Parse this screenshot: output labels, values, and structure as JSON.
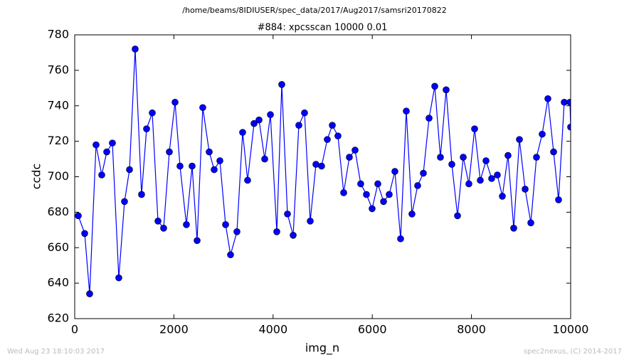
{
  "chart_data": {
    "type": "line",
    "header": "/home/beams/8IDIUSER/spec_data/2017/Aug2017/samsri20170822",
    "title": "#884: xpcsscan 10000 0.01",
    "x_label": "img_n",
    "y_label": "ccdc",
    "footer_left": "Wed Aug 23 18:10:03 2017",
    "footer_right": "spec2nexus, (C) 2014-2017",
    "xlim": [
      0,
      10000
    ],
    "xticks": [
      0,
      2000,
      4000,
      6000,
      8000,
      10000
    ],
    "ylim": [
      620,
      780
    ],
    "yticks": [
      620,
      640,
      660,
      680,
      700,
      720,
      740,
      760,
      780
    ],
    "x": [
      72,
      201,
      301,
      430,
      545,
      646,
      760,
      889,
      1004,
      1105,
      1219,
      1348,
      1449,
      1564,
      1679,
      1793,
      1908,
      2023,
      2123,
      2252,
      2367,
      2468,
      2582,
      2712,
      2812,
      2927,
      3042,
      3142,
      3271,
      3386,
      3486,
      3616,
      3716,
      3831,
      3946,
      4075,
      4175,
      4290,
      4405,
      4519,
      4634,
      4749,
      4864,
      4978,
      5093,
      5194,
      5308,
      5423,
      5538,
      5653,
      5767,
      5882,
      5997,
      6112,
      6227,
      6341,
      6456,
      6571,
      6686,
      6800,
      6915,
      7030,
      7145,
      7260,
      7374,
      7489,
      7604,
      7719,
      7834,
      7948,
      8063,
      8178,
      8293,
      8407,
      8522,
      8623,
      8737,
      8852,
      8967,
      9082,
      9197,
      9311,
      9426,
      9541,
      9656,
      9756,
      9871,
      9986,
      10000
    ],
    "series": [
      {
        "color": "#0000ff",
        "values": [
          678,
          668,
          634,
          718,
          701,
          714,
          719,
          643,
          686,
          704,
          772,
          690,
          727,
          736,
          675,
          671,
          714,
          742,
          706,
          673,
          706,
          664,
          739,
          714,
          704,
          709,
          673,
          656,
          669,
          725,
          698,
          730,
          732,
          710,
          735,
          669,
          752,
          679,
          667,
          729,
          736,
          675,
          707,
          706,
          721,
          729,
          723,
          691,
          711,
          715,
          696,
          690,
          682,
          696,
          686,
          690,
          703,
          665,
          737,
          679,
          695,
          702,
          733,
          751,
          711,
          749,
          707,
          678,
          711,
          696,
          727,
          698,
          709,
          699,
          701,
          689,
          712,
          671,
          721,
          693,
          674,
          711,
          724,
          744,
          714,
          687,
          742,
          742,
          728
        ]
      }
    ]
  }
}
